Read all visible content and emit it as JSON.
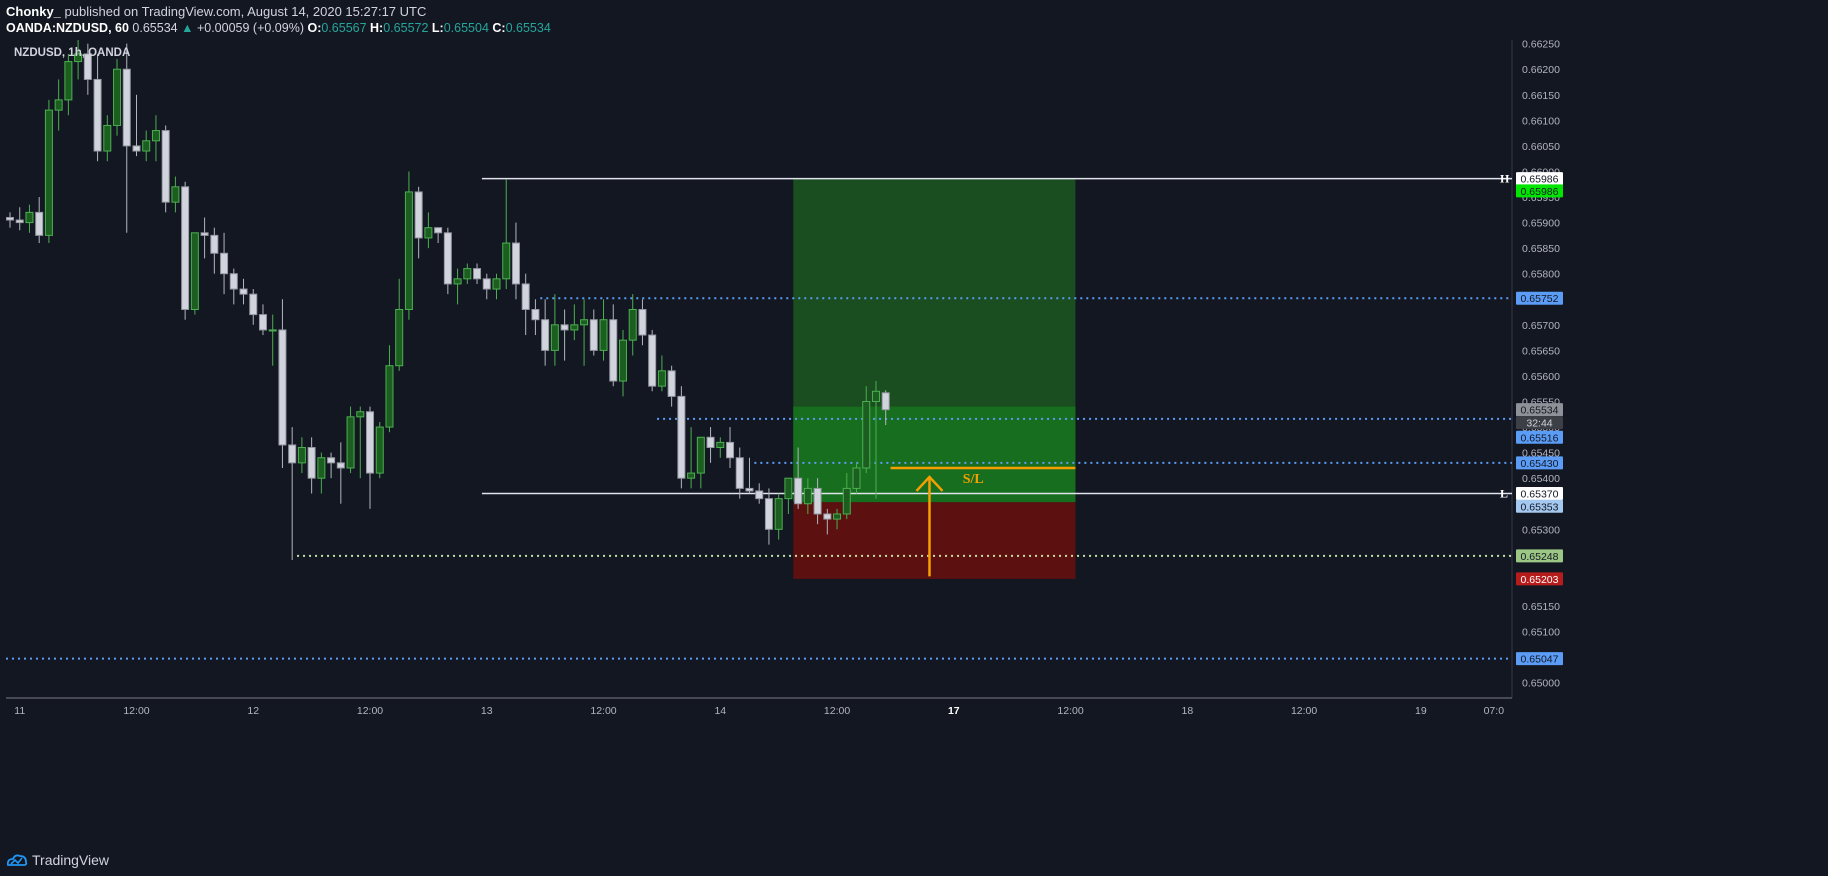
{
  "header": {
    "author": "Chonky_",
    "published": "published on TradingView.com, August 14, 2020 15:27:17 UTC",
    "symbol": "OANDA:NZDUSD, 60",
    "last": "0.65534",
    "change": "+0.00059 (+0.09%)",
    "o_label": "O:",
    "o_value": "0.65567",
    "h_label": "H:",
    "h_value": "0.65572",
    "l_label": "L:",
    "l_value": "0.65504",
    "c_label": "C:",
    "c_value": "0.65534"
  },
  "footer": {
    "brand": "TradingView"
  },
  "chart_data": {
    "type": "candlestick",
    "title": "NZDUSD, 1h, OANDA",
    "ylim": [
      0.6497,
      0.66265
    ],
    "yticks": [
      "0.66250",
      "0.66200",
      "0.66150",
      "0.66100",
      "0.66050",
      "0.66000",
      "0.65950",
      "0.65900",
      "0.65850",
      "0.65800",
      "0.65750",
      "0.65700",
      "0.65650",
      "0.65600",
      "0.65550",
      "0.65500",
      "0.65450",
      "0.65400",
      "0.65350",
      "0.65300",
      "0.65250",
      "0.65200",
      "0.65150",
      "0.65100",
      "0.65050",
      "0.65000"
    ],
    "xticks": [
      {
        "label": "11",
        "bar": 1
      },
      {
        "label": "12:00",
        "bar": 13
      },
      {
        "label": "12",
        "bar": 25
      },
      {
        "label": "12:00",
        "bar": 37
      },
      {
        "label": "13",
        "bar": 49
      },
      {
        "label": "12:00",
        "bar": 61
      },
      {
        "label": "14",
        "bar": 73
      },
      {
        "label": "12:00",
        "bar": 85
      },
      {
        "label": "17",
        "bar": 97
      },
      {
        "label": "12:00",
        "bar": 109
      },
      {
        "label": "18",
        "bar": 121
      },
      {
        "label": "12:00",
        "bar": 133
      },
      {
        "label": "19",
        "bar": 145
      },
      {
        "label": "07:0",
        "bar": 152.5
      }
    ],
    "ohlc": [
      [
        0.6591,
        0.6592,
        0.6589,
        0.65905
      ],
      [
        0.65905,
        0.6593,
        0.65885,
        0.659
      ],
      [
        0.659,
        0.65935,
        0.6588,
        0.6592
      ],
      [
        0.6592,
        0.6595,
        0.6586,
        0.65875
      ],
      [
        0.65875,
        0.6614,
        0.6586,
        0.6612
      ],
      [
        0.6612,
        0.6618,
        0.6608,
        0.6614
      ],
      [
        0.6614,
        0.6623,
        0.6611,
        0.66215
      ],
      [
        0.66215,
        0.6626,
        0.6618,
        0.6623
      ],
      [
        0.6623,
        0.6625,
        0.6615,
        0.6618
      ],
      [
        0.6618,
        0.6623,
        0.6602,
        0.6604
      ],
      [
        0.6604,
        0.6611,
        0.6602,
        0.6609
      ],
      [
        0.6609,
        0.6622,
        0.6607,
        0.662
      ],
      [
        0.662,
        0.6625,
        0.6588,
        0.6605
      ],
      [
        0.6605,
        0.6615,
        0.6603,
        0.6604
      ],
      [
        0.6604,
        0.6608,
        0.6602,
        0.6606
      ],
      [
        0.6606,
        0.6611,
        0.6602,
        0.6608
      ],
      [
        0.6608,
        0.6609,
        0.6592,
        0.6594
      ],
      [
        0.6594,
        0.6599,
        0.6592,
        0.6597
      ],
      [
        0.6597,
        0.6598,
        0.6571,
        0.6573
      ],
      [
        0.6573,
        0.6588,
        0.6572,
        0.6588
      ],
      [
        0.6588,
        0.6591,
        0.6583,
        0.65875
      ],
      [
        0.65875,
        0.6589,
        0.658,
        0.6584
      ],
      [
        0.6584,
        0.6588,
        0.6576,
        0.658
      ],
      [
        0.658,
        0.6581,
        0.6574,
        0.6577
      ],
      [
        0.6577,
        0.6579,
        0.6574,
        0.6576
      ],
      [
        0.6576,
        0.6577,
        0.657,
        0.6572
      ],
      [
        0.6572,
        0.6574,
        0.6568,
        0.6569
      ],
      [
        0.6569,
        0.6572,
        0.6562,
        0.6569
      ],
      [
        0.6569,
        0.6575,
        0.6542,
        0.65465
      ],
      [
        0.65465,
        0.655,
        0.6524,
        0.6543
      ],
      [
        0.6543,
        0.6548,
        0.6541,
        0.6546
      ],
      [
        0.6546,
        0.6548,
        0.6537,
        0.654
      ],
      [
        0.654,
        0.6545,
        0.6537,
        0.6544
      ],
      [
        0.6544,
        0.6545,
        0.654,
        0.6543
      ],
      [
        0.6543,
        0.6547,
        0.6535,
        0.6542
      ],
      [
        0.6542,
        0.6554,
        0.6541,
        0.6552
      ],
      [
        0.6552,
        0.6554,
        0.654,
        0.6553
      ],
      [
        0.6553,
        0.6554,
        0.6534,
        0.6541
      ],
      [
        0.6541,
        0.6551,
        0.654,
        0.655
      ],
      [
        0.655,
        0.6566,
        0.6549,
        0.6562
      ],
      [
        0.6562,
        0.6579,
        0.6561,
        0.6573
      ],
      [
        0.6573,
        0.66,
        0.6571,
        0.6596
      ],
      [
        0.6596,
        0.6597,
        0.6583,
        0.6587
      ],
      [
        0.6587,
        0.6592,
        0.6585,
        0.6589
      ],
      [
        0.6589,
        0.6589,
        0.6586,
        0.6588
      ],
      [
        0.6588,
        0.6589,
        0.6576,
        0.6578
      ],
      [
        0.6578,
        0.6581,
        0.6574,
        0.6579
      ],
      [
        0.6579,
        0.6582,
        0.6578,
        0.6581
      ],
      [
        0.6581,
        0.6582,
        0.6578,
        0.6579
      ],
      [
        0.6579,
        0.658,
        0.6575,
        0.6577
      ],
      [
        0.6577,
        0.658,
        0.6575,
        0.6579
      ],
      [
        0.6579,
        0.65985,
        0.6577,
        0.6586
      ],
      [
        0.6586,
        0.659,
        0.6575,
        0.6578
      ],
      [
        0.6578,
        0.658,
        0.6568,
        0.6573
      ],
      [
        0.6573,
        0.6575,
        0.6568,
        0.6571
      ],
      [
        0.6571,
        0.6575,
        0.6562,
        0.6565
      ],
      [
        0.6565,
        0.6576,
        0.6562,
        0.657
      ],
      [
        0.657,
        0.6573,
        0.6563,
        0.6569
      ],
      [
        0.6569,
        0.6574,
        0.6567,
        0.657
      ],
      [
        0.657,
        0.6575,
        0.6562,
        0.6571
      ],
      [
        0.6571,
        0.6573,
        0.6564,
        0.6565
      ],
      [
        0.6565,
        0.6575,
        0.6563,
        0.6571
      ],
      [
        0.6571,
        0.6574,
        0.6558,
        0.6559
      ],
      [
        0.6559,
        0.6569,
        0.6556,
        0.6567
      ],
      [
        0.6567,
        0.6576,
        0.6564,
        0.6573
      ],
      [
        0.6573,
        0.6575,
        0.6566,
        0.6568
      ],
      [
        0.6568,
        0.6569,
        0.6557,
        0.6558
      ],
      [
        0.6558,
        0.6564,
        0.6557,
        0.6561
      ],
      [
        0.6561,
        0.6562,
        0.6554,
        0.6556
      ],
      [
        0.6556,
        0.6558,
        0.6538,
        0.654
      ],
      [
        0.654,
        0.655,
        0.6538,
        0.6541
      ],
      [
        0.6541,
        0.6548,
        0.6538,
        0.6548
      ],
      [
        0.6548,
        0.655,
        0.6543,
        0.6546
      ],
      [
        0.6546,
        0.6548,
        0.6544,
        0.6547
      ],
      [
        0.6547,
        0.655,
        0.6542,
        0.6544
      ],
      [
        0.6544,
        0.6546,
        0.6536,
        0.6538
      ],
      [
        0.6538,
        0.6544,
        0.6537,
        0.65375
      ],
      [
        0.65375,
        0.6539,
        0.6535,
        0.6536
      ],
      [
        0.6536,
        0.6538,
        0.6527,
        0.653
      ],
      [
        0.653,
        0.6537,
        0.6528,
        0.6536
      ],
      [
        0.6536,
        0.654,
        0.6533,
        0.654
      ],
      [
        0.654,
        0.6546,
        0.6534,
        0.6535
      ],
      [
        0.6535,
        0.654,
        0.6533,
        0.6538
      ],
      [
        0.6538,
        0.654,
        0.6531,
        0.6533
      ],
      [
        0.6533,
        0.6534,
        0.6529,
        0.6532
      ],
      [
        0.6532,
        0.6534,
        0.653,
        0.6533
      ],
      [
        0.6533,
        0.6541,
        0.6532,
        0.6538
      ],
      [
        0.6538,
        0.6543,
        0.6537,
        0.6542
      ],
      [
        0.6542,
        0.6558,
        0.6541,
        0.6555
      ],
      [
        0.6555,
        0.6559,
        0.6536,
        0.6557
      ],
      [
        0.65567,
        0.65572,
        0.65504,
        0.65534
      ]
    ],
    "annotations": {
      "h_level": 0.65986,
      "l_level": 0.6537,
      "h_marker": "H",
      "l_marker": "L",
      "dotted_levels": [
        0.65752,
        0.65516,
        0.6543,
        0.65248,
        0.65047
      ],
      "tp_zone": [
        0.65353,
        0.65986
      ],
      "entry_zone": [
        0.65353,
        0.6554
      ],
      "sl_zone": [
        0.65203,
        0.65353
      ],
      "sl_line": 0.6542,
      "sl_label": "S/L",
      "countdown": "32:44"
    },
    "price_labels": [
      {
        "value": "0.65986",
        "bg": "#ffffff",
        "fg": "#131722",
        "price": 0.65986
      },
      {
        "value": "0.65986",
        "bg": "#00e600",
        "fg": "#131722",
        "price": 0.65962
      },
      {
        "value": "0.65752",
        "bg": "#5b9cf6",
        "fg": "#131722",
        "price": 0.65752
      },
      {
        "value": "0.65534",
        "bg": "#8f9198",
        "fg": "#131722",
        "price": 0.65534
      },
      {
        "value": "0.65516",
        "bg": "#5b9cf6",
        "fg": "#131722",
        "price": 0.6548
      },
      {
        "value": "0.65430",
        "bg": "#5b9cf6",
        "fg": "#131722",
        "price": 0.6543
      },
      {
        "value": "0.65370",
        "bg": "#ffffff",
        "fg": "#131722",
        "price": 0.6537
      },
      {
        "value": "0.65353",
        "bg": "#a5c8f0",
        "fg": "#131722",
        "price": 0.65345
      },
      {
        "value": "0.65248",
        "bg": "#9bc684",
        "fg": "#131722",
        "price": 0.65248
      },
      {
        "value": "0.65203",
        "bg": "#b71c1c",
        "fg": "#ffffff",
        "price": 0.65203
      },
      {
        "value": "0.65047",
        "bg": "#5b9cf6",
        "fg": "#131722",
        "price": 0.65047
      }
    ],
    "colors": {
      "bull": "#4caf50",
      "bear": "#d1d4dc",
      "wick_bull": "#4caf50",
      "wick_bear": "#b2b5be",
      "dotted": "#5b9cf6",
      "dotted_green": "#c5e1a5",
      "sl": "#f59f00",
      "tp_zone": "#1a4d1f",
      "entry_zone": "#186e1f",
      "sl_zone": "#5c1010"
    }
  }
}
